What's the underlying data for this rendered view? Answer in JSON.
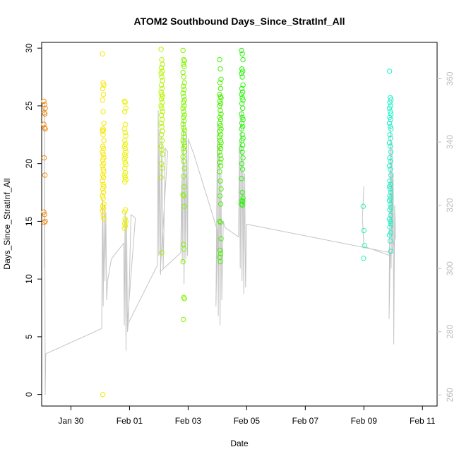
{
  "chart_data": {
    "type": "scatter",
    "title": "ATOM2 Southbound Days_Since_StratInf_All",
    "xlabel": "Date",
    "ylabel": "Days_Since_StratInf_All",
    "x_axis_type": "date",
    "xlim": [
      "2017-01-29T00:00",
      "2017-02-11T12:00"
    ],
    "ylim": [
      -1,
      30.5
    ],
    "x_ticks": [
      {
        "date": "2017-01-30",
        "label": "Jan 30"
      },
      {
        "date": "2017-02-01",
        "label": "Feb 01"
      },
      {
        "date": "2017-02-03",
        "label": "Feb 03"
      },
      {
        "date": "2017-02-05",
        "label": "Feb 05"
      },
      {
        "date": "2017-02-07",
        "label": "Feb 07"
      },
      {
        "date": "2017-02-09",
        "label": "Feb 09"
      },
      {
        "date": "2017-02-11",
        "label": "Feb 11"
      }
    ],
    "y_ticks": [
      0,
      5,
      10,
      15,
      20,
      25,
      30
    ],
    "secondary_y": {
      "description": "altitude trace (gray line)",
      "ylim": [
        256.5,
        371.5
      ],
      "ticks": [
        260,
        280,
        300,
        320,
        340,
        360
      ],
      "color": "#bdbdbd"
    },
    "grid": false,
    "legend": "none",
    "marker": "open-circle",
    "colors": {
      "0": "#f28e1c",
      "1": "#f7e600",
      "2": "#e9f100",
      "3": "#b5f400",
      "4": "#83f300",
      "5": "#4af000",
      "6": "#2bf40b",
      "7": "#2cf3ba",
      "8": "#1ef1c9"
    },
    "groups": [
      {
        "date": "2017-01-30",
        "t": 0.1,
        "color": "#f28e1c",
        "y": [
          25.4,
          25.1,
          24.8,
          24.4,
          24.3,
          23.4,
          23.1,
          23.0,
          20.5,
          19.0,
          15.8,
          15.6,
          15.0,
          14.9
        ]
      },
      {
        "date": "2017-02-01",
        "t": 2.1,
        "color": "#f7e600",
        "y": [
          29.5,
          27.0,
          26.8,
          26.5,
          26.0,
          25.5,
          24.5,
          23.5,
          23.0,
          22.9,
          22.8,
          22.5,
          22.0,
          21.5,
          21.3,
          21.0,
          20.8,
          20.5,
          20.3,
          20.0,
          19.8,
          19.5,
          19.3,
          19.0,
          18.8,
          18.5,
          18.2,
          18.0,
          17.8,
          17.5,
          17.2,
          17.0,
          16.5,
          16.3,
          16.1,
          15.9,
          15.5,
          15.2,
          0.0
        ]
      },
      {
        "date": "2017-02-02",
        "t": 2.85,
        "color": "#e9f100",
        "y": [
          25.4,
          25.3,
          24.8,
          24.5,
          23.4,
          23.0,
          22.7,
          22.4,
          22.0,
          21.7,
          21.5,
          21.3,
          21.0,
          20.8,
          20.6,
          20.4,
          20.1,
          19.9,
          19.6,
          19.2,
          19.0,
          18.8,
          18.6,
          18.4,
          16.0,
          15.8,
          15.2,
          15.0,
          14.8,
          14.6,
          14.4
        ]
      },
      {
        "date": "2017-02-03",
        "t": 4.1,
        "color": "#b5f400",
        "y": [
          29.9,
          29.0,
          28.6,
          28.3,
          28.0,
          27.8,
          27.5,
          27.2,
          26.8,
          26.5,
          26.2,
          26.0,
          25.8,
          25.6,
          25.3,
          25.0,
          24.8,
          24.5,
          24.2,
          23.8,
          23.5,
          23.2,
          22.8,
          22.5,
          22.0,
          21.5,
          21.2,
          20.8,
          20.0,
          19.6,
          18.8,
          12.3
        ]
      },
      {
        "date": "2017-02-04",
        "t": 4.85,
        "color": "#83f300",
        "y": [
          29.8,
          29.0,
          28.9,
          28.6,
          28.4,
          27.9,
          27.5,
          27.0,
          26.7,
          26.4,
          26.1,
          25.8,
          25.5,
          25.3,
          25.0,
          24.8,
          24.5,
          24.2,
          24.0,
          23.7,
          23.4,
          23.1,
          22.9,
          22.6,
          22.3,
          22.0,
          21.8,
          21.5,
          21.3,
          21.0,
          20.6,
          20.2,
          19.6,
          18.9,
          18.0,
          17.3,
          17.2,
          16.3,
          13.0,
          12.6,
          11.5,
          8.4,
          8.3,
          6.5
        ]
      },
      {
        "date": "2017-02-05",
        "t": 6.1,
        "color": "#4af000",
        "y": [
          29.0,
          28.2,
          27.3,
          27.0,
          26.5,
          26.0,
          25.8,
          25.7,
          25.4,
          25.2,
          25.0,
          24.6,
          24.3,
          24.0,
          23.8,
          23.5,
          23.3,
          23.0,
          22.8,
          22.5,
          22.3,
          22.0,
          21.8,
          21.5,
          21.3,
          21.0,
          20.7,
          20.4,
          20.1,
          19.8,
          19.3,
          18.5,
          17.8,
          17.2,
          16.5,
          15.0,
          14.9,
          13.5,
          12.5,
          12.2,
          11.9,
          11.5
        ]
      },
      {
        "date": "2017-02-06",
        "t": 6.85,
        "color": "#2bf40b",
        "y": [
          29.8,
          29.5,
          29.0,
          28.2,
          28.0,
          27.8,
          27.5,
          26.8,
          26.5,
          26.2,
          26.0,
          25.7,
          25.5,
          25.2,
          24.8,
          24.3,
          24.0,
          23.8,
          23.5,
          23.2,
          23.0,
          22.5,
          22.2,
          22.0,
          21.6,
          21.3,
          21.0,
          20.5,
          20.0,
          19.5,
          18.7,
          17.5,
          17.0,
          16.8,
          16.7,
          16.5,
          16.4
        ]
      },
      {
        "date": "2017-02-10",
        "t": 11.0,
        "color": "#2cf3ba",
        "y": [
          16.3,
          14.2,
          12.9,
          11.8
        ]
      },
      {
        "date": "2017-02-11",
        "t": 11.9,
        "color": "#1ef1c9",
        "y": [
          28.0,
          25.7,
          25.5,
          25.3,
          25.0,
          24.8,
          24.5,
          24.3,
          24.0,
          23.8,
          23.5,
          23.2,
          23.0,
          22.5,
          22.2,
          21.8,
          21.5,
          21.0,
          20.5,
          20.2,
          19.8,
          19.5,
          19.0,
          18.5,
          18.2,
          18.0,
          17.8,
          17.5,
          17.2,
          17.0,
          16.8,
          16.5,
          16.2,
          16.0,
          15.5,
          15.2,
          15.0,
          14.8,
          14.5,
          14.0,
          13.8,
          13.3,
          12.4
        ]
      }
    ],
    "trace": [
      {
        "t": 0.1,
        "y": 300
      },
      {
        "t": 0.1,
        "y": 353
      },
      {
        "t": 0.12,
        "y": 260
      },
      {
        "t": 0.14,
        "y": 273
      },
      {
        "t": 2.05,
        "y": 281
      },
      {
        "t": 2.08,
        "y": 322
      },
      {
        "t": 2.1,
        "y": 288
      },
      {
        "t": 2.13,
        "y": 320
      },
      {
        "t": 2.16,
        "y": 296
      },
      {
        "t": 2.19,
        "y": 318
      },
      {
        "t": 2.22,
        "y": 290
      },
      {
        "t": 2.25,
        "y": 296
      },
      {
        "t": 2.38,
        "y": 303
      },
      {
        "t": 2.8,
        "y": 308
      },
      {
        "t": 2.82,
        "y": 282
      },
      {
        "t": 2.85,
        "y": 318
      },
      {
        "t": 2.88,
        "y": 274
      },
      {
        "t": 2.9,
        "y": 316
      },
      {
        "t": 2.93,
        "y": 280
      },
      {
        "t": 2.96,
        "y": 283
      },
      {
        "t": 3.05,
        "y": 317
      },
      {
        "t": 3.2,
        "y": 316
      },
      {
        "t": 2.92,
        "y": 282
      },
      {
        "t": 3.95,
        "y": 301
      },
      {
        "t": 3.98,
        "y": 350
      },
      {
        "t": 4.0,
        "y": 304
      },
      {
        "t": 4.03,
        "y": 344
      },
      {
        "t": 4.06,
        "y": 298
      },
      {
        "t": 4.1,
        "y": 342
      },
      {
        "t": 4.15,
        "y": 300
      },
      {
        "t": 4.22,
        "y": 338
      },
      {
        "t": 4.3,
        "y": 337
      },
      {
        "t": 4.05,
        "y": 299
      },
      {
        "t": 4.75,
        "y": 305
      },
      {
        "t": 4.78,
        "y": 328
      },
      {
        "t": 4.8,
        "y": 302
      },
      {
        "t": 4.83,
        "y": 347
      },
      {
        "t": 4.86,
        "y": 295
      },
      {
        "t": 4.89,
        "y": 333
      },
      {
        "t": 4.92,
        "y": 303
      },
      {
        "t": 4.95,
        "y": 343
      },
      {
        "t": 4.98,
        "y": 304
      },
      {
        "t": 5.0,
        "y": 341
      },
      {
        "t": 5.2,
        "y": 336
      },
      {
        "t": 6.0,
        "y": 312
      },
      {
        "t": 5.95,
        "y": 288
      },
      {
        "t": 6.0,
        "y": 346
      },
      {
        "t": 6.03,
        "y": 285
      },
      {
        "t": 6.06,
        "y": 340
      },
      {
        "t": 6.09,
        "y": 282
      },
      {
        "t": 6.12,
        "y": 330
      },
      {
        "t": 6.15,
        "y": 290
      },
      {
        "t": 6.2,
        "y": 315
      },
      {
        "t": 6.25,
        "y": 313
      },
      {
        "t": 6.72,
        "y": 310
      },
      {
        "t": 6.75,
        "y": 340
      },
      {
        "t": 6.78,
        "y": 300
      },
      {
        "t": 6.81,
        "y": 350
      },
      {
        "t": 6.84,
        "y": 296
      },
      {
        "t": 6.87,
        "y": 337
      },
      {
        "t": 6.9,
        "y": 292
      },
      {
        "t": 6.93,
        "y": 330
      },
      {
        "t": 6.96,
        "y": 294
      },
      {
        "t": 7.0,
        "y": 314
      },
      {
        "t": 11.9,
        "y": 305
      },
      {
        "t": 11.86,
        "y": 284
      },
      {
        "t": 11.9,
        "y": 345
      },
      {
        "t": 11.93,
        "y": 300
      },
      {
        "t": 11.96,
        "y": 340
      },
      {
        "t": 11.98,
        "y": 306
      },
      {
        "t": 12.0,
        "y": 330
      },
      {
        "t": 12.02,
        "y": 276
      },
      {
        "t": 12.05,
        "y": 320
      },
      {
        "t": 12.08,
        "y": 310
      },
      {
        "t": 11.92,
        "y": 304
      },
      {
        "t": 11.0,
        "y": 307
      },
      {
        "t": 10.95,
        "y": 316
      },
      {
        "t": 11.0,
        "y": 326
      }
    ]
  }
}
